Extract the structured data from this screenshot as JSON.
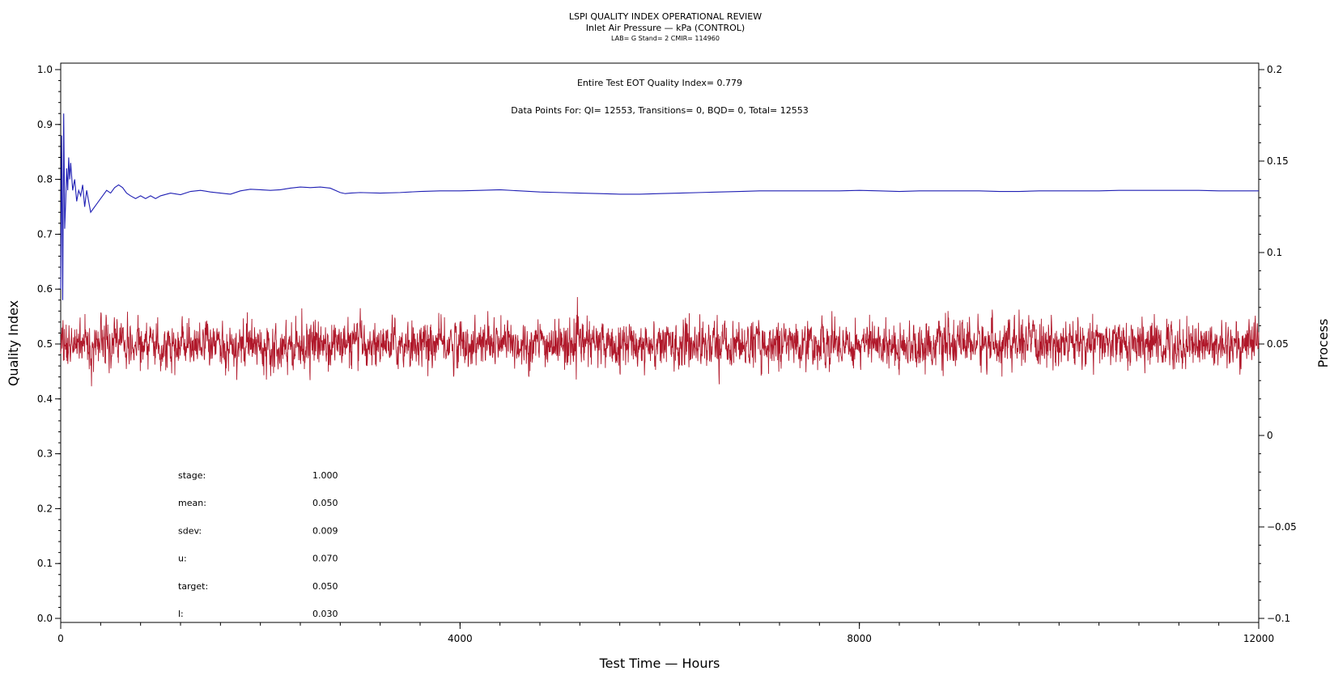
{
  "chart_data": {
    "type": "line",
    "title": "LSPI QUALITY INDEX OPERATIONAL REVIEW",
    "subtitle": "Inlet Air Pressure — kPa (CONTROL)",
    "subsubtitle": "LAB= G Stand= 2 CMIR= 114960",
    "annotations": {
      "quality_index_text": "Entire Test EOT Quality Index=   0.779",
      "data_points_text": "Data Points For: QI= 12553, Transitions=     0, BQD=     0, Total= 12553"
    },
    "xlabel": "Test Time — Hours",
    "ylabel": "Quality Index",
    "y2label": "Process",
    "xlim": [
      0,
      12000
    ],
    "ylim": [
      0,
      1
    ],
    "y2lim": [
      -0.1,
      0.2
    ],
    "x_ticks": [
      0,
      4000,
      8000,
      12000
    ],
    "x_tick_labels": [
      "0",
      "4000",
      "8000",
      "12000"
    ],
    "y_ticks": [
      0,
      0.1,
      0.2,
      0.3,
      0.4,
      0.5,
      0.6,
      0.7,
      0.8,
      0.9,
      1.0
    ],
    "y_tick_labels": [
      "0.0",
      "0.1",
      "0.2",
      "0.3",
      "0.4",
      "0.5",
      "0.6",
      "0.7",
      "0.8",
      "0.9",
      "1.0"
    ],
    "y2_ticks": [
      -0.1,
      -0.05,
      0,
      0.05,
      0.1,
      0.15,
      0.2
    ],
    "y2_tick_labels": [
      "−0.1",
      "−0.05",
      "0",
      "0.05",
      "0.1",
      "0.15",
      "0.2"
    ],
    "grid": false,
    "series": [
      {
        "axis": "left",
        "color": "#1f1fb4",
        "x": [
          0,
          10,
          20,
          30,
          40,
          50,
          60,
          70,
          80,
          90,
          100,
          120,
          140,
          160,
          180,
          200,
          220,
          240,
          260,
          280,
          300,
          340,
          380,
          420,
          460,
          500,
          540,
          580,
          620,
          660,
          700,
          750,
          800,
          850,
          900,
          950,
          1000,
          1100,
          1200,
          1300,
          1400,
          1500,
          1600,
          1700,
          1800,
          1900,
          2000,
          2100,
          2200,
          2300,
          2400,
          2500,
          2600,
          2700,
          2800,
          2850,
          2900,
          3000,
          3200,
          3400,
          3600,
          3800,
          4000,
          4200,
          4400,
          4600,
          4800,
          5000,
          5200,
          5400,
          5600,
          5800,
          6000,
          6200,
          6400,
          6600,
          6800,
          7000,
          7200,
          7400,
          7600,
          7800,
          8000,
          8200,
          8400,
          8600,
          8800,
          9000,
          9200,
          9400,
          9600,
          9800,
          10000,
          10200,
          10400,
          10600,
          10800,
          11000,
          11200,
          11400,
          11600,
          11800,
          12000
        ],
        "values": [
          0.6,
          0.88,
          0.58,
          0.92,
          0.71,
          0.76,
          0.82,
          0.78,
          0.84,
          0.8,
          0.83,
          0.78,
          0.8,
          0.76,
          0.78,
          0.77,
          0.79,
          0.75,
          0.78,
          0.76,
          0.74,
          0.75,
          0.76,
          0.77,
          0.78,
          0.775,
          0.785,
          0.79,
          0.785,
          0.775,
          0.77,
          0.765,
          0.77,
          0.765,
          0.77,
          0.765,
          0.77,
          0.775,
          0.772,
          0.778,
          0.78,
          0.777,
          0.775,
          0.773,
          0.779,
          0.782,
          0.781,
          0.78,
          0.781,
          0.784,
          0.786,
          0.785,
          0.786,
          0.784,
          0.776,
          0.774,
          0.775,
          0.776,
          0.775,
          0.776,
          0.778,
          0.779,
          0.779,
          0.78,
          0.781,
          0.779,
          0.777,
          0.776,
          0.775,
          0.774,
          0.773,
          0.773,
          0.774,
          0.775,
          0.776,
          0.777,
          0.778,
          0.779,
          0.779,
          0.779,
          0.779,
          0.779,
          0.78,
          0.779,
          0.778,
          0.779,
          0.779,
          0.779,
          0.779,
          0.778,
          0.778,
          0.779,
          0.779,
          0.779,
          0.779,
          0.78,
          0.78,
          0.78,
          0.78,
          0.78,
          0.779,
          0.779,
          0.779
        ]
      },
      {
        "axis": "right",
        "color": "#b0182a",
        "noise": true,
        "x_range": [
          0,
          12000
        ],
        "mean": 0.05,
        "sdev": 0.009,
        "min": 0.015,
        "max": 0.086,
        "count": 12553
      }
    ],
    "stats": [
      {
        "label": "stage:",
        "value": "1.000"
      },
      {
        "label": "mean:",
        "value": "0.050"
      },
      {
        "label": "sdev:",
        "value": "0.009"
      },
      {
        "label": "u:",
        "value": "0.070"
      },
      {
        "label": "target:",
        "value": "0.050"
      },
      {
        "label": "l:",
        "value": "0.030"
      }
    ]
  }
}
